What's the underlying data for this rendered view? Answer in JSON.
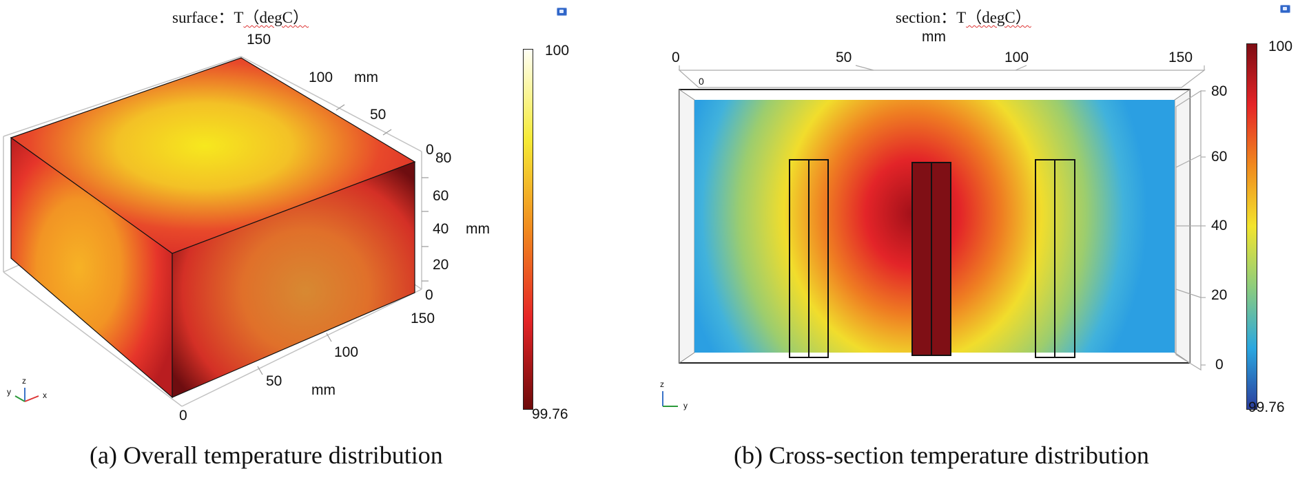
{
  "panel_a": {
    "title_prefix": "surface：T",
    "title_unit": "（degC）",
    "caption": "(a) Overall temperature distribution",
    "x_ticks": [
      "0",
      "50",
      "100",
      "150"
    ],
    "x_label": "mm",
    "y_ticks": [
      "0",
      "50",
      "100",
      "150"
    ],
    "y_label": "mm",
    "z_ticks": [
      "0",
      "20",
      "40",
      "60",
      "80"
    ],
    "z_label": "mm",
    "colorbar": {
      "max_label": "100",
      "min_label": "99.76",
      "colors": [
        "#fffff4",
        "#f5ea36",
        "#f08a1e",
        "#e52427",
        "#6d0a0a"
      ]
    },
    "triad": {
      "y": "y",
      "z": "z",
      "x": "x"
    }
  },
  "panel_b": {
    "title_prefix": "section：T",
    "title_unit": "（degC）",
    "caption": "(b) Cross-section temperature distribution",
    "x_ticks": [
      "0",
      "50",
      "100",
      "150"
    ],
    "x_label": "mm",
    "z_ticks": [
      "0",
      "20",
      "40",
      "60",
      "80"
    ],
    "corner_tick": "0",
    "colorbar": {
      "max_label": "100",
      "min_label": "99.76",
      "colors": [
        "#7e0d14",
        "#e52427",
        "#f08a1e",
        "#f2e42e",
        "#8ccc7d",
        "#2aa7e0",
        "#2b3d9c"
      ]
    },
    "triad": {
      "z": "z",
      "y": "y"
    }
  }
}
